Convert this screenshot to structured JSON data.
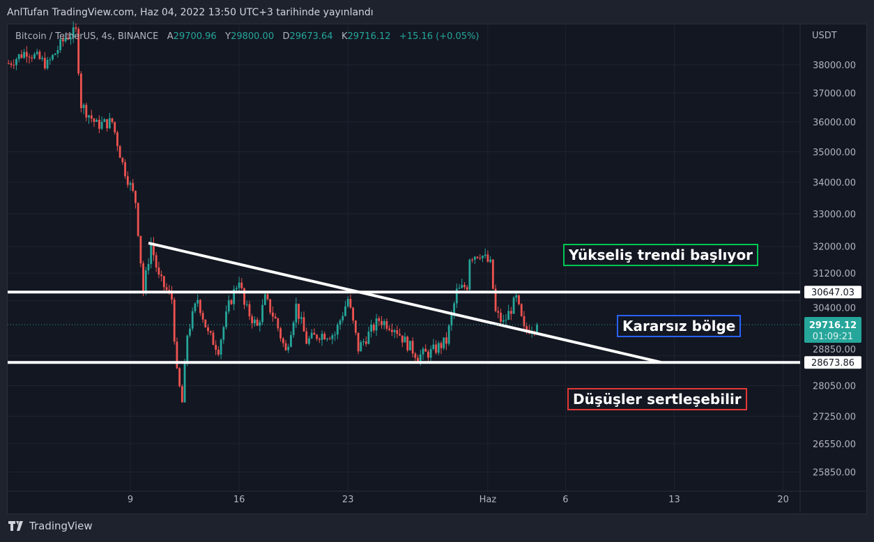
{
  "header": {
    "published": "AnlTufan TradingView.com, Haz 04, 2022 13:50 UTC+3 tarihinde yayınlandı"
  },
  "legend": {
    "symbol": "Bitcoin / TetherUS, 4s, BINANCE",
    "open_label": "A",
    "open": "29700.96",
    "high_label": "Y",
    "high": "29800.00",
    "low_label": "D",
    "low": "29673.64",
    "close_label": "K",
    "close": "29716.12",
    "change": "+15.16 (+0.05%)"
  },
  "footer": {
    "brand": "TradingView"
  },
  "annotations": {
    "bull": {
      "text": "Yükseliş trendi başlıyor",
      "color": "#00c853"
    },
    "range": {
      "text": "Kararsız bölge",
      "color": "#2962ff"
    },
    "bear": {
      "text": "Düşüşler sertleşebilir",
      "color": "#e53935"
    }
  },
  "chart_data": {
    "type": "candlestick",
    "y_scale": "log",
    "y_unit": "USDT",
    "y_ticks": [
      "38000.00",
      "37000.00",
      "36000.00",
      "35000.00",
      "34000.00",
      "33000.00",
      "32000.00",
      "31200.00",
      "30400.00",
      "28850.00",
      "28050.00",
      "27250.00",
      "26550.00",
      "25850.00"
    ],
    "x_ticks": [
      {
        "label": "9",
        "date": "2022-05-09"
      },
      {
        "label": "16",
        "date": "2022-05-16"
      },
      {
        "label": "23",
        "date": "2022-05-23"
      },
      {
        "label": "Haz",
        "date": "2022-06-01"
      },
      {
        "label": "6",
        "date": "2022-06-06"
      },
      {
        "label": "13",
        "date": "2022-06-13"
      },
      {
        "label": "20",
        "date": "2022-06-20"
      }
    ],
    "price_path": [
      [
        "2022-05-01 04:00",
        38050
      ],
      [
        "2022-05-02 08:00",
        38500
      ],
      [
        "2022-05-03 16:00",
        38000
      ],
      [
        "2022-05-04 20:00",
        39000
      ],
      [
        "2022-05-05 12:00",
        39200
      ],
      [
        "2022-05-05 20:00",
        36600
      ],
      [
        "2022-05-06 20:00",
        35900
      ],
      [
        "2022-05-07 20:00",
        36000
      ],
      [
        "2022-05-08 12:00",
        34600
      ],
      [
        "2022-05-09 08:00",
        33400
      ],
      [
        "2022-05-09 20:00",
        30650
      ],
      [
        "2022-05-10 08:00",
        32100
      ],
      [
        "2022-05-10 20:00",
        31050
      ],
      [
        "2022-05-11 16:00",
        30450
      ],
      [
        "2022-05-12 00:00",
        28350
      ],
      [
        "2022-05-12 08:00",
        27600
      ],
      [
        "2022-05-12 16:00",
        29450
      ],
      [
        "2022-05-13 08:00",
        30450
      ],
      [
        "2022-05-14 00:00",
        29450
      ],
      [
        "2022-05-14 16:00",
        29050
      ],
      [
        "2022-05-15 08:00",
        30250
      ],
      [
        "2022-05-16 00:00",
        31050
      ],
      [
        "2022-05-16 08:00",
        30250
      ],
      [
        "2022-05-17 04:00",
        29650
      ],
      [
        "2022-05-17 16:00",
        30450
      ],
      [
        "2022-05-18 08:00",
        29850
      ],
      [
        "2022-05-19 00:00",
        28950
      ],
      [
        "2022-05-19 16:00",
        30250
      ],
      [
        "2022-05-20 08:00",
        29250
      ],
      [
        "2022-05-21 04:00",
        29450
      ],
      [
        "2022-05-22 04:00",
        29450
      ],
      [
        "2022-05-23 00:00",
        30450
      ],
      [
        "2022-05-23 16:00",
        29050
      ],
      [
        "2022-05-24 08:00",
        29450
      ],
      [
        "2022-05-25 00:00",
        29850
      ],
      [
        "2022-05-26 00:00",
        29650
      ],
      [
        "2022-05-26 16:00",
        29250
      ],
      [
        "2022-05-27 12:00",
        28850
      ],
      [
        "2022-05-28 08:00",
        28950
      ],
      [
        "2022-05-29 08:00",
        29250
      ],
      [
        "2022-05-30 00:00",
        30650
      ],
      [
        "2022-05-30 16:00",
        30850
      ],
      [
        "2022-05-30 20:00",
        31700
      ],
      [
        "2022-05-31 12:00",
        31800
      ],
      [
        "2022-06-01 04:00",
        31450
      ],
      [
        "2022-06-01 12:00",
        30050
      ],
      [
        "2022-06-02 00:00",
        29750
      ],
      [
        "2022-06-02 20:00",
        30450
      ],
      [
        "2022-06-03 08:00",
        29550
      ],
      [
        "2022-06-04 04:00",
        29716.12
      ]
    ],
    "last_price": {
      "value": 29716.12,
      "label": "29716.12",
      "countdown": "01:09:21",
      "color": "#26a69a"
    },
    "horizontal_lines": [
      {
        "value": 30647.03,
        "label": "30647.03"
      },
      {
        "value": 28673.86,
        "label": "28673.86"
      }
    ],
    "trendline": {
      "from": [
        "2022-05-10 04:00",
        32100
      ],
      "to": [
        "2022-06-12 04:00",
        28673.86
      ]
    },
    "colors": {
      "up": "#26a69a",
      "down": "#ef5350",
      "background": "#131722",
      "grid": "#1f2330"
    },
    "grid": true
  }
}
